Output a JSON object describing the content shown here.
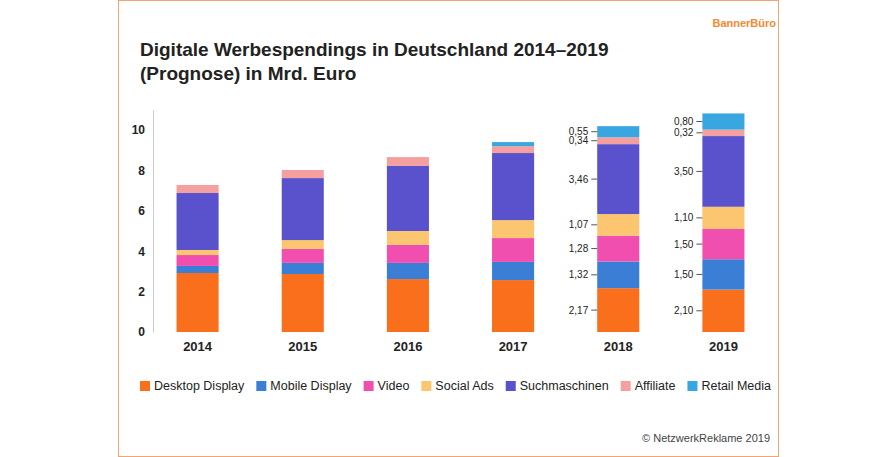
{
  "chart_data": {
    "type": "bar",
    "stacked": true,
    "title": [
      "Digitale Werbespendings in Deutschland 2014–2019",
      "(Prognose) in Mrd. Euro"
    ],
    "annotations": [
      "BannerBüro",
      "© NetzwerkReklame 2019"
    ],
    "categories": [
      "2014",
      "2015",
      "2016",
      "2017",
      "2018",
      "2019"
    ],
    "ylim": [
      0,
      11
    ],
    "yticks": [
      0,
      2,
      4,
      6,
      8,
      10
    ],
    "grid": false,
    "legend": "bottom",
    "data_labels": true,
    "series": [
      {
        "name": "Desktop Display",
        "color": "#f96f1c",
        "values": [
          2.92,
          2.87,
          2.62,
          2.57,
          2.17,
          2.1
        ],
        "value_labels": [
          null,
          null,
          null,
          null,
          "2,17",
          "2,10"
        ]
      },
      {
        "name": "Mobile Display",
        "color": "#3a7fd5",
        "values": [
          0.35,
          0.55,
          0.8,
          0.9,
          1.32,
          1.5
        ],
        "value_labels": [
          null,
          null,
          null,
          null,
          "1,32",
          "1,50"
        ]
      },
      {
        "name": "Video",
        "color": "#f04fb0",
        "values": [
          0.54,
          0.69,
          0.89,
          1.18,
          1.28,
          1.5
        ],
        "value_labels": [
          null,
          null,
          null,
          null,
          "1,28",
          "1,50"
        ]
      },
      {
        "name": "Social Ads",
        "color": "#fbc66f",
        "values": [
          0.25,
          0.44,
          0.69,
          0.89,
          1.07,
          1.1
        ],
        "value_labels": [
          null,
          null,
          null,
          null,
          "1,07",
          "1,10"
        ]
      },
      {
        "name": "Suchmaschinen",
        "color": "#5a52cc",
        "values": [
          2.82,
          3.07,
          3.22,
          3.32,
          3.46,
          3.5
        ],
        "value_labels": [
          null,
          null,
          null,
          null,
          "3,46",
          "3,50"
        ]
      },
      {
        "name": "Affiliate",
        "color": "#f5a0a0",
        "values": [
          0.4,
          0.4,
          0.44,
          0.34,
          0.34,
          0.32
        ],
        "value_labels": [
          null,
          null,
          null,
          null,
          "0,34",
          "0,32"
        ]
      },
      {
        "name": "Retail Media",
        "color": "#38a6e0",
        "values": [
          0,
          0,
          0,
          0.2,
          0.55,
          0.8
        ],
        "value_labels": [
          null,
          null,
          null,
          null,
          "0,55",
          "0,80"
        ]
      }
    ]
  }
}
